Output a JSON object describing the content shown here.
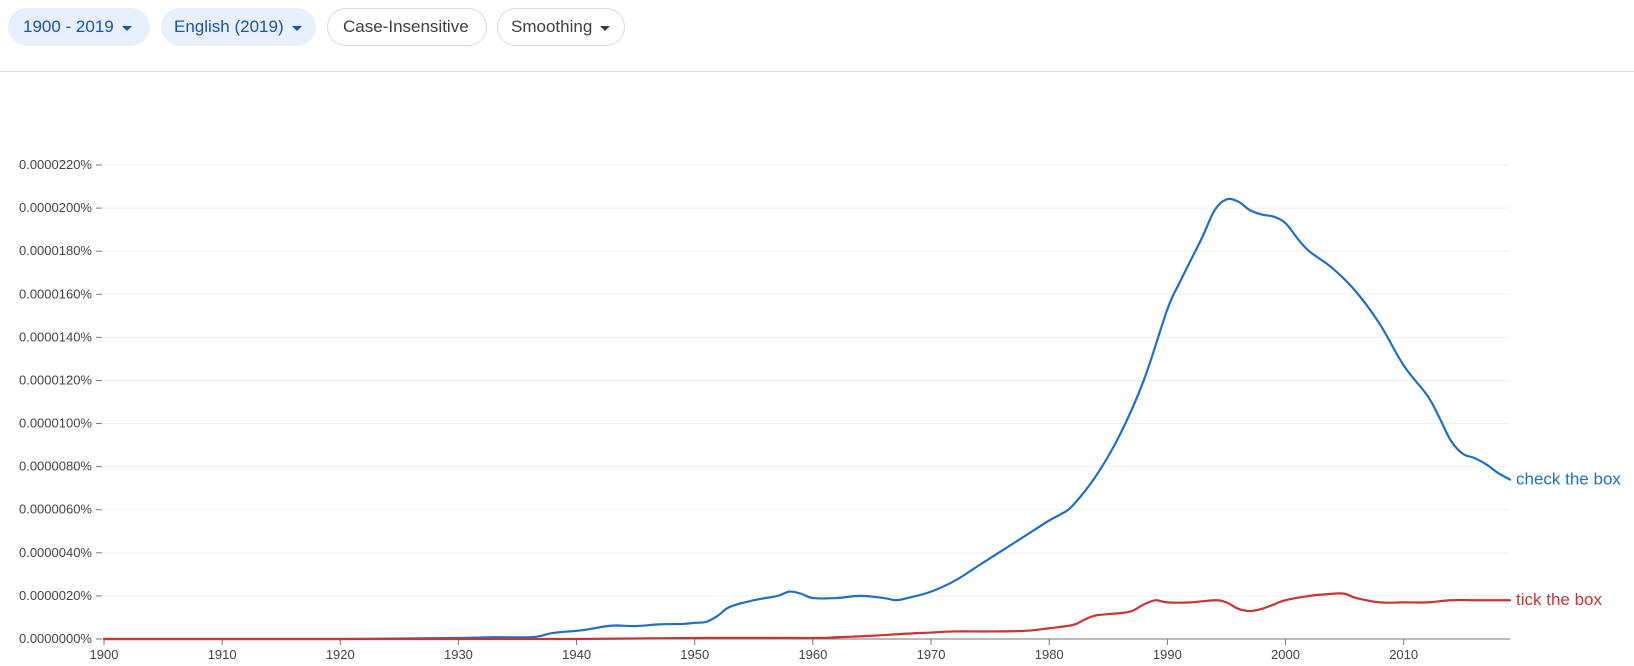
{
  "toolbar": {
    "range_label": "1900 - 2019",
    "corpus_label": "English (2019)",
    "case_label": "Case-Insensitive",
    "smoothing_label": "Smoothing"
  },
  "colors": {
    "chip_fill": "#e8f0fe",
    "chip_text": "#1a55a6",
    "gridline": "#efefef",
    "axis": "#777777"
  },
  "icons": {
    "dropdown": "caret-down-icon"
  },
  "chart_data": {
    "type": "line",
    "title": "",
    "xlabel": "",
    "ylabel": "",
    "xlim": [
      1900,
      2019
    ],
    "ylim": [
      0,
      2.2e-05
    ],
    "grid": true,
    "legend": "inline-right",
    "x_ticks": [
      "1900",
      "1910",
      "1920",
      "1930",
      "1940",
      "1950",
      "1960",
      "1970",
      "1980",
      "1990",
      "2000",
      "2010"
    ],
    "y_ticks": [
      "0.0000000%",
      "0.0000020%",
      "0.0000040%",
      "0.0000060%",
      "0.0000080%",
      "0.0000100%",
      "0.0000120%",
      "0.0000140%",
      "0.0000160%",
      "0.0000180%",
      "0.0000200%",
      "0.0000220%"
    ],
    "y_tick_values": [
      0,
      2e-06,
      4e-06,
      6e-06,
      8e-06,
      1e-05,
      1.2e-05,
      1.4e-05,
      1.6e-05,
      1.8e-05,
      2e-05,
      2.2e-05
    ],
    "series": [
      {
        "name": "check the box",
        "color": "#1f6fc7",
        "x": [
          1900,
          1910,
          1920,
          1930,
          1933,
          1936,
          1937,
          1938,
          1940,
          1941,
          1943,
          1945,
          1947,
          1949,
          1950,
          1951,
          1952,
          1953,
          1955,
          1957,
          1958,
          1959,
          1960,
          1962,
          1964,
          1966,
          1967,
          1968,
          1970,
          1972,
          1974,
          1976,
          1978,
          1980,
          1981,
          1982,
          1984,
          1986,
          1988,
          1990,
          1991,
          1992,
          1993,
          1994,
          1995,
          1996,
          1997,
          1998,
          1999,
          2000,
          2001,
          2002,
          2004,
          2006,
          2008,
          2010,
          2012,
          2013,
          2014,
          2015,
          2016,
          2017,
          2018,
          2019
        ],
        "values": [
          0,
          0,
          0,
          5e-08,
          8e-08,
          8e-08,
          1.5e-07,
          2.8e-07,
          3.8e-07,
          4.5e-07,
          6.2e-07,
          6e-07,
          6.8e-07,
          7e-07,
          7.5e-07,
          8e-07,
          1.1e-06,
          1.5e-06,
          1.8e-06,
          2e-06,
          2.2e-06,
          2.1e-06,
          1.9e-06,
          1.9e-06,
          2e-06,
          1.9e-06,
          1.8e-06,
          1.9e-06,
          2.2e-06,
          2.7e-06,
          3.4e-06,
          4.1e-06,
          4.8e-06,
          5.5e-06,
          5.8e-06,
          6.2e-06,
          7.6e-06,
          9.5e-06,
          1.2e-05,
          1.53e-05,
          1.65e-05,
          1.76e-05,
          1.87e-05,
          1.99e-05,
          2.04e-05,
          2.03e-05,
          1.99e-05,
          1.97e-05,
          1.96e-05,
          1.93e-05,
          1.86e-05,
          1.8e-05,
          1.72e-05,
          1.61e-05,
          1.46e-05,
          1.27e-05,
          1.13e-05,
          1.03e-05,
          9.2e-06,
          8.6e-06,
          8.4e-06,
          8.1e-06,
          7.7e-06,
          7.4e-06
        ]
      },
      {
        "name": "tick the box",
        "color": "#cc3333",
        "x": [
          1900,
          1920,
          1930,
          1940,
          1950,
          1960,
          1962,
          1965,
          1968,
          1970,
          1972,
          1975,
          1978,
          1980,
          1982,
          1983,
          1984,
          1986,
          1987,
          1988,
          1989,
          1990,
          1992,
          1994,
          1995,
          1996,
          1997,
          1998,
          1999,
          2000,
          2002,
          2004,
          2005,
          2006,
          2008,
          2010,
          2012,
          2014,
          2016,
          2018,
          2019
        ],
        "values": [
          0,
          0,
          0,
          0,
          5e-08,
          5e-08,
          8e-08,
          1.5e-07,
          2.5e-07,
          3e-07,
          3.5e-07,
          3.5e-07,
          3.8e-07,
          5e-07,
          6.5e-07,
          9e-07,
          1.1e-06,
          1.2e-06,
          1.3e-06,
          1.6e-06,
          1.8e-06,
          1.7e-06,
          1.7e-06,
          1.8e-06,
          1.7e-06,
          1.4e-06,
          1.3e-06,
          1.4e-06,
          1.6e-06,
          1.8e-06,
          2e-06,
          2.1e-06,
          2.1e-06,
          1.9e-06,
          1.7e-06,
          1.7e-06,
          1.7e-06,
          1.8e-06,
          1.8e-06,
          1.8e-06,
          1.8e-06
        ]
      }
    ]
  }
}
